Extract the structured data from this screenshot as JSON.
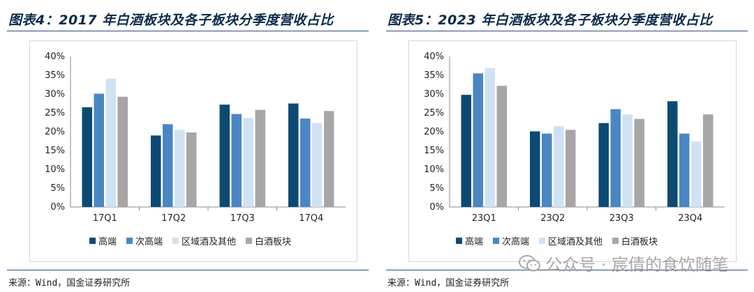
{
  "colors": {
    "high_end": "#0d4a73",
    "sub_high_end": "#4a86c4",
    "region_other": "#cfe2f3",
    "baijiu_sector": "#a6a6a6",
    "title": "#0b2a4a",
    "rule": "#2b4f7a"
  },
  "chart_data": [
    {
      "type": "bar",
      "title": "图表4：2017 年白酒板块及各子板块分季度营收占比",
      "categories": [
        "17Q1",
        "17Q2",
        "17Q3",
        "17Q4"
      ],
      "series": [
        {
          "name": "高端",
          "values": [
            26.5,
            19.0,
            27.2,
            27.5
          ]
        },
        {
          "name": "次高端",
          "values": [
            30.1,
            22.0,
            24.7,
            23.5
          ]
        },
        {
          "name": "区域酒及其他",
          "values": [
            34.1,
            20.5,
            23.6,
            22.3
          ]
        },
        {
          "name": "白酒板块",
          "values": [
            29.3,
            19.8,
            25.8,
            25.5
          ]
        }
      ],
      "ylim": [
        0,
        40
      ],
      "yticks": [
        "0%",
        "5%",
        "10%",
        "15%",
        "20%",
        "25%",
        "30%",
        "35%",
        "40%"
      ],
      "xlabel": "",
      "ylabel": "",
      "legend_position": "bottom"
    },
    {
      "type": "bar",
      "title": "图表5：2023 年白酒板块及各子板块分季度营收占比",
      "categories": [
        "23Q1",
        "23Q2",
        "23Q3",
        "23Q4"
      ],
      "series": [
        {
          "name": "高端",
          "values": [
            29.8,
            20.1,
            22.3,
            28.1
          ]
        },
        {
          "name": "次高端",
          "values": [
            35.5,
            19.5,
            26.0,
            19.5
          ]
        },
        {
          "name": "区域酒及其他",
          "values": [
            36.9,
            21.5,
            24.6,
            17.4
          ]
        },
        {
          "name": "白酒板块",
          "values": [
            32.2,
            20.5,
            23.4,
            24.6
          ]
        }
      ],
      "ylim": [
        0,
        40
      ],
      "yticks": [
        "0%",
        "5%",
        "10%",
        "15%",
        "20%",
        "25%",
        "30%",
        "35%",
        "40%"
      ],
      "xlabel": "",
      "ylabel": "",
      "legend_position": "bottom"
    }
  ],
  "left": {
    "title": "图表4：2017 年白酒板块及各子板块分季度营收占比",
    "source": "来源：Wind，国金证券研究所",
    "legend": [
      "高端",
      "次高端",
      "区域酒及其他",
      "白酒板块"
    ]
  },
  "right": {
    "title": "图表5：2023 年白酒板块及各子板块分季度营收占比",
    "source": "来源：Wind，国金证券研究所",
    "legend": [
      "高端",
      "次高端",
      "区域酒及其他",
      "白酒板块"
    ]
  },
  "watermark": {
    "text": "公众号 · 宸倩的食饮随笔",
    "icon": "wechat-icon"
  }
}
